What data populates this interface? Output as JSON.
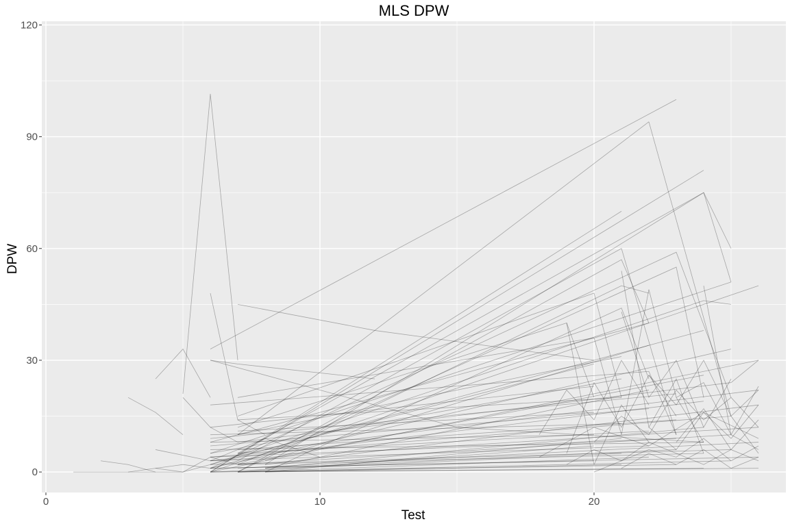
{
  "chart_data": {
    "type": "line",
    "title": "MLS DPW",
    "xlabel": "Test",
    "ylabel": "DPW",
    "xlim": [
      -0.15,
      27
    ],
    "ylim": [
      -5.5,
      121
    ],
    "x_ticks": [
      0,
      10,
      20
    ],
    "y_ticks": [
      0,
      30,
      60,
      90,
      120
    ],
    "grid": true,
    "legend": "none",
    "line_color": "#000000",
    "panel_color": "#EBEBEB",
    "series_note_count": 96,
    "series": [
      {
        "x": [
          1,
          2,
          3,
          4,
          5
        ],
        "y": [
          0,
          0,
          0,
          0,
          0
        ]
      },
      {
        "x": [
          2,
          3,
          4
        ],
        "y": [
          3,
          2,
          0
        ]
      },
      {
        "x": [
          3,
          4,
          5
        ],
        "y": [
          20,
          16,
          10
        ]
      },
      {
        "x": [
          4,
          5,
          6
        ],
        "y": [
          25,
          33,
          20
        ]
      },
      {
        "x": [
          5,
          6,
          7
        ],
        "y": [
          21,
          101.5,
          30
        ]
      },
      {
        "x": [
          5,
          6,
          7
        ],
        "y": [
          20,
          12,
          8
        ]
      },
      {
        "x": [
          6,
          7,
          8
        ],
        "y": [
          48,
          14,
          10
        ]
      },
      {
        "x": [
          6,
          7,
          12
        ],
        "y": [
          30,
          29,
          25
        ]
      },
      {
        "x": [
          6,
          15,
          24
        ],
        "y": [
          30,
          12,
          8
        ]
      },
      {
        "x": [
          7,
          12,
          20
        ],
        "y": [
          45,
          38,
          30
        ]
      },
      {
        "x": [
          6,
          23
        ],
        "y": [
          33,
          100
        ]
      },
      {
        "x": [
          7,
          22
        ],
        "y": [
          10,
          94
        ]
      },
      {
        "x": [
          22,
          25,
          26
        ],
        "y": [
          94,
          15,
          5
        ]
      },
      {
        "x": [
          6,
          24
        ],
        "y": [
          0,
          81
        ]
      },
      {
        "x": [
          7,
          24,
          25
        ],
        "y": [
          5,
          75,
          51
        ]
      },
      {
        "x": [
          8,
          24,
          25
        ],
        "y": [
          2,
          75,
          60
        ]
      },
      {
        "x": [
          6,
          21
        ],
        "y": [
          0,
          70
        ]
      },
      {
        "x": [
          7,
          21,
          23
        ],
        "y": [
          3,
          60,
          10
        ]
      },
      {
        "x": [
          6,
          23,
          25
        ],
        "y": [
          1,
          59,
          20
        ]
      },
      {
        "x": [
          7,
          21,
          22
        ],
        "y": [
          0,
          57,
          40
        ]
      },
      {
        "x": [
          8,
          23,
          24
        ],
        "y": [
          5,
          55,
          20
        ]
      },
      {
        "x": [
          6,
          25
        ],
        "y": [
          5,
          51
        ]
      },
      {
        "x": [
          7,
          21,
          22
        ],
        "y": [
          0,
          50,
          48
        ]
      },
      {
        "x": [
          6,
          26
        ],
        "y": [
          0,
          50
        ]
      },
      {
        "x": [
          7,
          20,
          21
        ],
        "y": [
          15,
          48,
          20
        ]
      },
      {
        "x": [
          6,
          24,
          25
        ],
        "y": [
          2,
          46,
          45
        ]
      },
      {
        "x": [
          8,
          21,
          22
        ],
        "y": [
          0,
          44,
          25
        ]
      },
      {
        "x": [
          6,
          22
        ],
        "y": [
          8,
          40
        ]
      },
      {
        "x": [
          7,
          19,
          20
        ],
        "y": [
          12,
          40,
          20
        ]
      },
      {
        "x": [
          6,
          24
        ],
        "y": [
          2,
          38
        ]
      },
      {
        "x": [
          7,
          20
        ],
        "y": [
          20,
          36
        ]
      },
      {
        "x": [
          8,
          22
        ],
        "y": [
          3,
          34
        ]
      },
      {
        "x": [
          6,
          25
        ],
        "y": [
          1,
          33
        ]
      },
      {
        "x": [
          7,
          21
        ],
        "y": [
          10,
          31
        ]
      },
      {
        "x": [
          6,
          26
        ],
        "y": [
          0,
          30
        ]
      },
      {
        "x": [
          8,
          20
        ],
        "y": [
          6,
          29
        ]
      },
      {
        "x": [
          6,
          22,
          23
        ],
        "y": [
          18,
          27,
          10
        ]
      },
      {
        "x": [
          7,
          24
        ],
        "y": [
          2,
          26
        ]
      },
      {
        "x": [
          6,
          21
        ],
        "y": [
          5,
          25
        ]
      },
      {
        "x": [
          7,
          25
        ],
        "y": [
          8,
          24
        ]
      },
      {
        "x": [
          6,
          20
        ],
        "y": [
          12,
          23
        ]
      },
      {
        "x": [
          8,
          22
        ],
        "y": [
          1,
          22
        ]
      },
      {
        "x": [
          7,
          26
        ],
        "y": [
          5,
          22
        ]
      },
      {
        "x": [
          6,
          23
        ],
        "y": [
          9,
          21
        ]
      },
      {
        "x": [
          7,
          21
        ],
        "y": [
          14,
          20
        ]
      },
      {
        "x": [
          6,
          24
        ],
        "y": [
          3,
          19
        ]
      },
      {
        "x": [
          8,
          26
        ],
        "y": [
          2,
          18
        ]
      },
      {
        "x": [
          6,
          22
        ],
        "y": [
          7,
          17
        ]
      },
      {
        "x": [
          7,
          20
        ],
        "y": [
          11,
          16
        ]
      },
      {
        "x": [
          6,
          25
        ],
        "y": [
          4,
          15
        ]
      },
      {
        "x": [
          7,
          23
        ],
        "y": [
          6,
          14
        ]
      },
      {
        "x": [
          6,
          21
        ],
        "y": [
          10,
          13
        ]
      },
      {
        "x": [
          8,
          24
        ],
        "y": [
          1,
          12
        ]
      },
      {
        "x": [
          6,
          26
        ],
        "y": [
          3,
          12
        ]
      },
      {
        "x": [
          7,
          22
        ],
        "y": [
          5,
          11
        ]
      },
      {
        "x": [
          6,
          20
        ],
        "y": [
          8,
          10
        ]
      },
      {
        "x": [
          7,
          25
        ],
        "y": [
          2,
          10
        ]
      },
      {
        "x": [
          6,
          23
        ],
        "y": [
          4,
          9
        ]
      },
      {
        "x": [
          8,
          21
        ],
        "y": [
          0,
          9
        ]
      },
      {
        "x": [
          6,
          24
        ],
        "y": [
          6,
          8
        ]
      },
      {
        "x": [
          7,
          26
        ],
        "y": [
          1,
          8
        ]
      },
      {
        "x": [
          6,
          22
        ],
        "y": [
          3,
          7
        ]
      },
      {
        "x": [
          7,
          20
        ],
        "y": [
          0,
          7
        ]
      },
      {
        "x": [
          6,
          25
        ],
        "y": [
          2,
          6
        ]
      },
      {
        "x": [
          8,
          23
        ],
        "y": [
          1,
          6
        ]
      },
      {
        "x": [
          6,
          21
        ],
        "y": [
          0,
          5
        ]
      },
      {
        "x": [
          7,
          24
        ],
        "y": [
          2,
          5
        ]
      },
      {
        "x": [
          6,
          26
        ],
        "y": [
          1,
          4
        ]
      },
      {
        "x": [
          7,
          22
        ],
        "y": [
          0,
          4
        ]
      },
      {
        "x": [
          6,
          20
        ],
        "y": [
          1,
          3
        ]
      },
      {
        "x": [
          7,
          25
        ],
        "y": [
          0,
          3
        ]
      },
      {
        "x": [
          6,
          23
        ],
        "y": [
          0,
          2
        ]
      },
      {
        "x": [
          8,
          21
        ],
        "y": [
          0,
          2
        ]
      },
      {
        "x": [
          6,
          24
        ],
        "y": [
          0,
          1
        ]
      },
      {
        "x": [
          7,
          26
        ],
        "y": [
          0,
          1
        ]
      },
      {
        "x": [
          18,
          19,
          20,
          21,
          22
        ],
        "y": [
          10,
          22,
          14,
          30,
          18
        ]
      },
      {
        "x": [
          19,
          20,
          21,
          22,
          23
        ],
        "y": [
          5,
          24,
          12,
          26,
          15
        ]
      },
      {
        "x": [
          20,
          21,
          22,
          23,
          24
        ],
        "y": [
          36,
          10,
          49,
          20,
          8
        ]
      },
      {
        "x": [
          21,
          22,
          23,
          24,
          25
        ],
        "y": [
          43,
          20,
          30,
          12,
          25
        ]
      },
      {
        "x": [
          20,
          21,
          22,
          23,
          24,
          25,
          26
        ],
        "y": [
          8,
          15,
          10,
          22,
          14,
          20,
          12
        ]
      },
      {
        "x": [
          22,
          23,
          24,
          25,
          26
        ],
        "y": [
          26,
          18,
          30,
          15,
          22
        ]
      },
      {
        "x": [
          23,
          24,
          25,
          26
        ],
        "y": [
          20,
          24,
          10,
          23
        ]
      },
      {
        "x": [
          24,
          25,
          26
        ],
        "y": [
          50,
          10,
          6
        ]
      },
      {
        "x": [
          21,
          22,
          23,
          24
        ],
        "y": [
          54,
          12,
          25,
          5
        ]
      },
      {
        "x": [
          25,
          26
        ],
        "y": [
          24,
          30
        ]
      },
      {
        "x": [
          19,
          20,
          21,
          22
        ],
        "y": [
          40,
          2,
          18,
          8
        ]
      },
      {
        "x": [
          20,
          21,
          22,
          23,
          24,
          25,
          26
        ],
        "y": [
          0,
          3,
          6,
          4,
          9,
          3,
          7
        ]
      },
      {
        "x": [
          21,
          22,
          23,
          24,
          25,
          26
        ],
        "y": [
          1,
          5,
          2,
          6,
          1,
          4
        ]
      },
      {
        "x": [
          19,
          20,
          21,
          22,
          23,
          24,
          25,
          26
        ],
        "y": [
          2,
          6,
          3,
          8,
          5,
          2,
          6,
          3
        ]
      },
      {
        "x": [
          22,
          23,
          24,
          25,
          26
        ],
        "y": [
          12,
          6,
          16,
          9,
          18
        ]
      },
      {
        "x": [
          23,
          24,
          25,
          26
        ],
        "y": [
          8,
          17,
          6,
          14
        ]
      },
      {
        "x": [
          18,
          20,
          22,
          24,
          26
        ],
        "y": [
          4,
          12,
          7,
          16,
          9
        ]
      },
      {
        "x": [
          3,
          4,
          5,
          6
        ],
        "y": [
          0,
          1,
          0,
          2
        ]
      },
      {
        "x": [
          4,
          5,
          6,
          7
        ],
        "y": [
          1,
          2,
          1,
          3
        ]
      },
      {
        "x": [
          5,
          6,
          7,
          8
        ],
        "y": [
          0,
          4,
          2,
          5
        ]
      },
      {
        "x": [
          4,
          6,
          8,
          10
        ],
        "y": [
          6,
          3,
          9,
          4
        ]
      }
    ]
  }
}
